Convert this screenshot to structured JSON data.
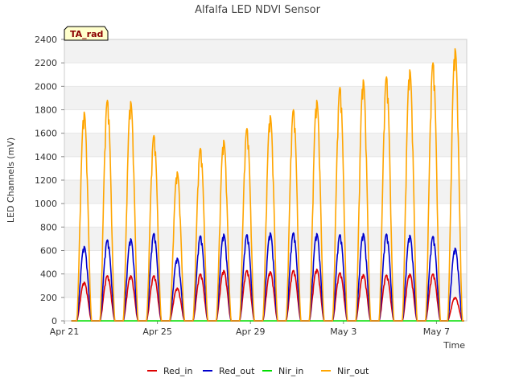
{
  "chart_data": {
    "type": "line",
    "title": "Alfalfa LED NDVI Sensor",
    "xlabel": "Time",
    "ylabel": "LED Channels (mV)",
    "badge": "TA_rad",
    "xlim": [
      0,
      17.3
    ],
    "ylim": [
      0,
      2400
    ],
    "yticks": [
      0,
      200,
      400,
      600,
      800,
      1000,
      1200,
      1400,
      1600,
      1800,
      2000,
      2200,
      2400
    ],
    "ytick_labels": [
      "0",
      "200",
      "400",
      "600",
      "800",
      "1000",
      "1200",
      "1400",
      "1600",
      "1800",
      "2000",
      "2200",
      "2400"
    ],
    "xticks": [
      0,
      4,
      8,
      12,
      16
    ],
    "xtick_labels": [
      "Apr 21",
      "Apr 25",
      "Apr 29",
      "May 3",
      "May 7"
    ],
    "day_centers": [
      0.85,
      1.85,
      2.85,
      3.85,
      4.85,
      5.85,
      6.85,
      7.85,
      8.85,
      9.85,
      10.85,
      11.85,
      12.85,
      13.85,
      14.85,
      15.85,
      16.8
    ],
    "series": [
      {
        "name": "Red_in",
        "color": "#dd0000",
        "peaks": [
          330,
          385,
          385,
          385,
          280,
          400,
          430,
          430,
          420,
          430,
          440,
          410,
          395,
          390,
          400,
          400,
          200
        ]
      },
      {
        "name": "Red_out",
        "color": "#0000cc",
        "peaks": [
          635,
          690,
          700,
          745,
          535,
          725,
          740,
          735,
          750,
          750,
          745,
          735,
          745,
          740,
          730,
          720,
          620
        ]
      },
      {
        "name": "Nir_in",
        "color": "#00dd00",
        "peaks": [
          0,
          0,
          0,
          0,
          0,
          0,
          0,
          0,
          0,
          0,
          0,
          0,
          0,
          0,
          0,
          0,
          0
        ]
      },
      {
        "name": "Nir_out",
        "color": "#ffa500",
        "peaks": [
          1780,
          1880,
          1870,
          1580,
          1270,
          1470,
          1540,
          1640,
          1750,
          1800,
          1880,
          1990,
          2055,
          2080,
          2140,
          2200,
          2320
        ]
      }
    ]
  }
}
